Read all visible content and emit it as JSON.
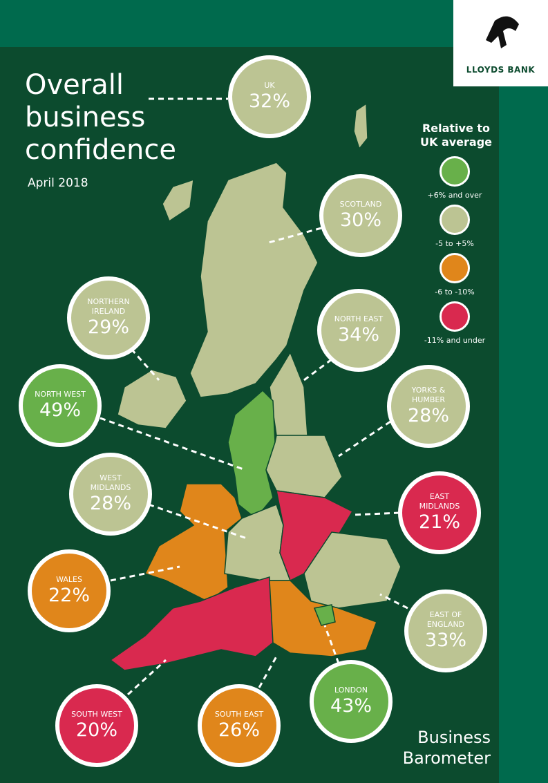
{
  "header": {
    "title": "Overall business confidence",
    "date": "April 2018",
    "brand": "LLOYDS BANK"
  },
  "legend": {
    "title": "Relative to UK average",
    "items": [
      {
        "label": "+6% and over",
        "color": "#68b04a"
      },
      {
        "label": "-5 to +5%",
        "color": "#bcc493"
      },
      {
        "label": "-6 to -10%",
        "color": "#e0861b"
      },
      {
        "label": "-11% and under",
        "color": "#d9294f"
      }
    ]
  },
  "regions": [
    {
      "name": "UK",
      "value": "32%",
      "color": "#bcc493"
    },
    {
      "name": "SCOTLAND",
      "value": "30%",
      "color": "#bcc493"
    },
    {
      "name": "NORTHERN IRELAND",
      "value": "29%",
      "color": "#bcc493"
    },
    {
      "name": "NORTH EAST",
      "value": "34%",
      "color": "#bcc493"
    },
    {
      "name": "NORTH WEST",
      "value": "49%",
      "color": "#68b04a"
    },
    {
      "name": "YORKS & HUMBER",
      "value": "28%",
      "color": "#bcc493"
    },
    {
      "name": "WEST MIDLANDS",
      "value": "28%",
      "color": "#bcc493"
    },
    {
      "name": "EAST MIDLANDS",
      "value": "21%",
      "color": "#d9294f"
    },
    {
      "name": "WALES",
      "value": "22%",
      "color": "#e0861b"
    },
    {
      "name": "EAST OF ENGLAND",
      "value": "33%",
      "color": "#bcc493"
    },
    {
      "name": "SOUTH WEST",
      "value": "20%",
      "color": "#d9294f"
    },
    {
      "name": "SOUTH EAST",
      "value": "26%",
      "color": "#e0861b"
    },
    {
      "name": "LONDON",
      "value": "43%",
      "color": "#68b04a"
    }
  ],
  "footer": {
    "text": "Business Barometer"
  }
}
